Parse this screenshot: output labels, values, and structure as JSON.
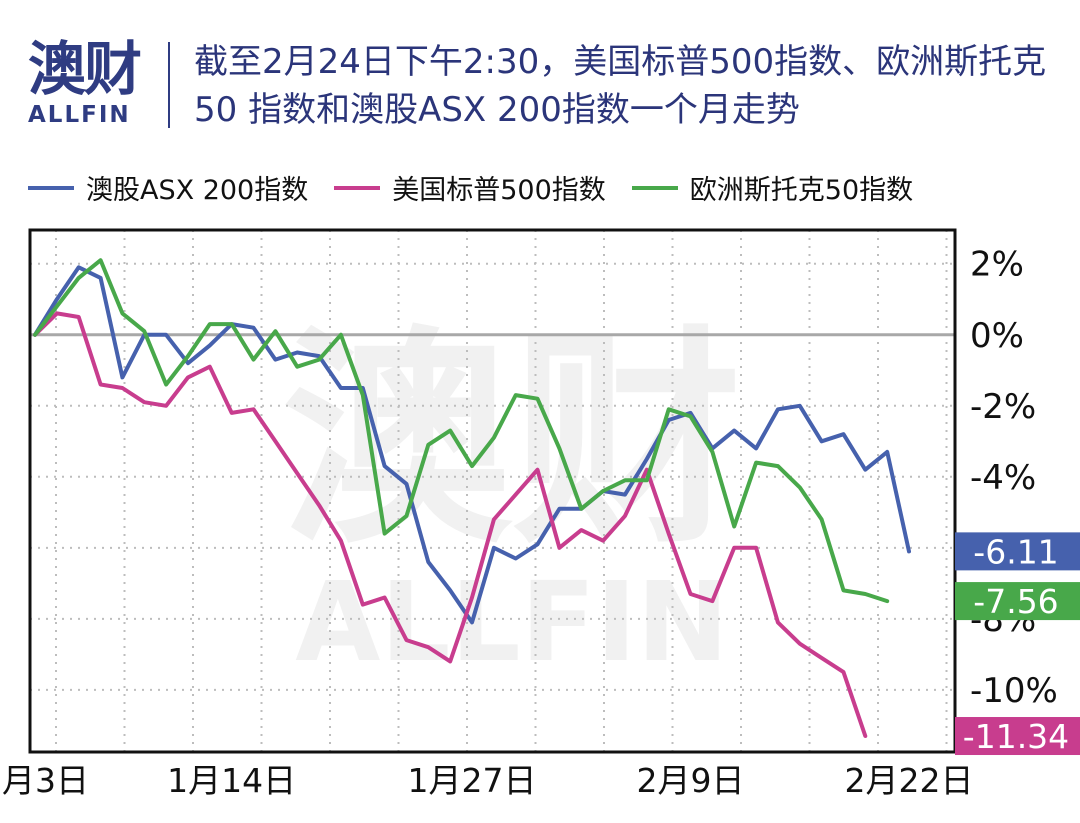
{
  "header": {
    "logo_cn": "澳财",
    "logo_en": "ALLFIN",
    "title": "截至2月24日下午2:30，美国标普500指数、欧洲斯托克50 指数和澳股ASX 200指数一个月走势"
  },
  "watermark": {
    "cn": "澳财",
    "en": "ALLFIN"
  },
  "chart_data": {
    "type": "line",
    "title": "截至2月24日下午2:30，美国标普500指数、欧洲斯托克50 指数和澳股ASX 200指数一个月走势",
    "xlabel": "",
    "ylabel": "",
    "x_tick_labels": [
      "1月3日",
      "1月14日",
      "1月27日",
      "2月9日",
      "2月22日"
    ],
    "x_tick_index": [
      0,
      9,
      20,
      30,
      40
    ],
    "y_ticks": [
      2,
      0,
      -2,
      -4,
      -6,
      -8,
      -10
    ],
    "y_tick_labels": [
      "2%",
      "0%",
      "-2%",
      "-4%",
      "-6%",
      "-8%",
      "-10%"
    ],
    "ylim": [
      -11.75,
      2.95
    ],
    "x_count": 44,
    "grid": true,
    "baseline": 0,
    "legend_position": "top",
    "series": [
      {
        "name": "澳股ASX 200指数",
        "color": "#4661ad",
        "end_label": "-6.11",
        "values": [
          0,
          1.0,
          1.9,
          1.6,
          -1.2,
          0,
          0,
          -0.8,
          -0.3,
          0.3,
          0.2,
          -0.7,
          -0.5,
          -0.6,
          -1.5,
          -1.5,
          -3.7,
          -4.2,
          -6.4,
          -7.2,
          -8.1,
          -6.0,
          -6.3,
          -5.9,
          -4.9,
          -4.9,
          -4.4,
          -4.5,
          -3.5,
          -2.4,
          -2.2,
          -3.2,
          -2.7,
          -3.2,
          -2.1,
          -2.0,
          -3.0,
          -2.8,
          -3.8,
          -3.3,
          -6.1
        ]
      },
      {
        "name": "美国标普500指数",
        "color": "#c83d8e",
        "end_label": "-11.34",
        "values": [
          0,
          0.6,
          0.5,
          -1.4,
          -1.5,
          -1.9,
          -2.0,
          -1.2,
          -0.9,
          -2.2,
          -2.1,
          -3.0,
          -3.9,
          -4.8,
          -5.8,
          -7.6,
          -7.4,
          -8.6,
          -8.8,
          -9.2,
          -7.4,
          -5.2,
          -4.5,
          -3.8,
          -6.0,
          -5.5,
          -5.8,
          -5.1,
          -3.8,
          -5.6,
          -7.3,
          -7.5,
          -6.0,
          -6.0,
          -8.1,
          -8.7,
          -9.1,
          -9.5,
          -11.3
        ]
      },
      {
        "name": "欧洲斯托克50指数",
        "color": "#48a84a",
        "end_label": "-7.56",
        "values": [
          0,
          0.8,
          1.6,
          2.1,
          0.6,
          0.1,
          -1.4,
          -0.6,
          0.3,
          0.3,
          -0.7,
          0.1,
          -0.9,
          -0.7,
          0,
          -1.7,
          -5.6,
          -5.1,
          -3.1,
          -2.7,
          -3.7,
          -2.9,
          -1.7,
          -1.8,
          -3.2,
          -4.9,
          -4.4,
          -4.1,
          -4.1,
          -2.1,
          -2.3,
          -3.3,
          -5.4,
          -3.6,
          -3.7,
          -4.3,
          -5.2,
          -7.2,
          -7.3,
          -7.5
        ]
      }
    ]
  }
}
